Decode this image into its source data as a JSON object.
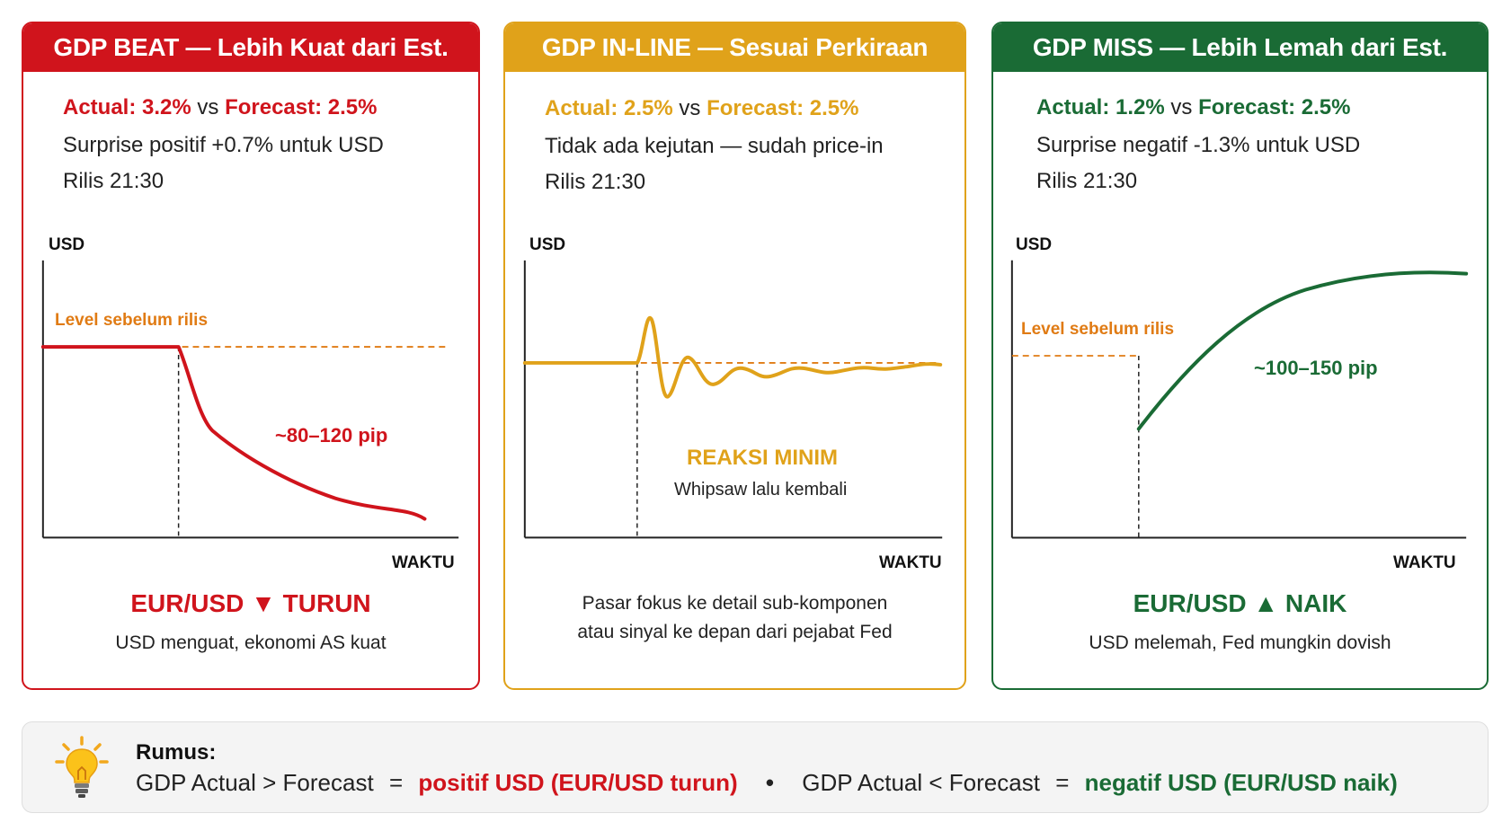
{
  "cards": [
    {
      "header": "GDP BEAT — Lebih Kuat dari Est.",
      "actual_label": "Actual: 3.2%",
      "vs": "vs",
      "forecast_label": "Forecast: 2.5%",
      "line2": "Surprise positif +0.7% untuk USD",
      "line3": "Rilis 21:30",
      "y_axis": "USD",
      "x_axis": "WAKTU",
      "level_label": "Level sebelum rilis",
      "move_label": "~80–120 pip",
      "result": "EUR/USD ▼ TURUN",
      "caption": "USD menguat, ekonomi AS kuat",
      "color": "#d0141c"
    },
    {
      "header": "GDP IN-LINE — Sesuai Perkiraan",
      "actual_label": "Actual: 2.5%",
      "vs": "vs",
      "forecast_label": "Forecast: 2.5%",
      "line2": "Tidak ada kejutan — sudah price-in",
      "line3": "Rilis 21:30",
      "y_axis": "USD",
      "x_axis": "WAKTU",
      "reaction_title": "REAKSI MINIM",
      "reaction_sub": "Whipsaw lalu kembali",
      "caption_line1": "Pasar fokus ke detail sub-komponen",
      "caption_line2": "atau sinyal ke depan dari pejabat Fed",
      "color": "#e0a21a"
    },
    {
      "header": "GDP MISS — Lebih Lemah dari Est.",
      "actual_label": "Actual: 1.2%",
      "vs": "vs",
      "forecast_label": "Forecast: 2.5%",
      "line2": "Surprise negatif -1.3% untuk USD",
      "line3": "Rilis 21:30",
      "y_axis": "USD",
      "x_axis": "WAKTU",
      "level_label": "Level sebelum rilis",
      "move_label": "~100–150 pip",
      "result": "EUR/USD ▲ NAIK",
      "caption": "USD melemah, Fed mungkin dovish",
      "color": "#1a6b35"
    }
  ],
  "formula": {
    "title": "Rumus:",
    "part1": "GDP Actual > Forecast",
    "eq1": "=",
    "result1": "positif USD (EUR/USD turun)",
    "bullet": "•",
    "part2": "GDP Actual < Forecast",
    "eq2": "=",
    "result2": "negatif USD (EUR/USD naik)",
    "icon": "lightbulb-icon"
  },
  "colors": {
    "red": "#d0141c",
    "gold": "#e0a21a",
    "green": "#1a6b35",
    "orange": "#e07b14"
  }
}
